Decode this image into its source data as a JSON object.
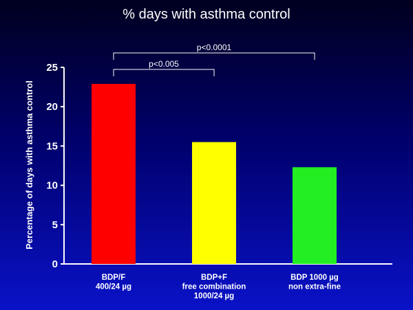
{
  "chart_data": {
    "type": "bar",
    "title": "% days with asthma control",
    "ylabel": "Percentage of days with asthma control",
    "xlabel": "",
    "ylim": [
      0,
      25
    ],
    "yticks": [
      0,
      5,
      10,
      15,
      20,
      25
    ],
    "grid": false,
    "categories": [
      [
        "BDP/F",
        "400/24 µg"
      ],
      [
        "BDP+F",
        "free combination",
        "1000/24 µg"
      ],
      [
        "BDP 1000 µg",
        "non extra-fine"
      ]
    ],
    "values": [
      22.9,
      15.5,
      12.3
    ],
    "colors": [
      "#ff0000",
      "#ffff00",
      "#22ee22"
    ],
    "annotations": [
      {
        "text": "p<0.005",
        "from": 0,
        "to": 1
      },
      {
        "text": "p<0.0001",
        "from": 0,
        "to": 2
      }
    ]
  }
}
